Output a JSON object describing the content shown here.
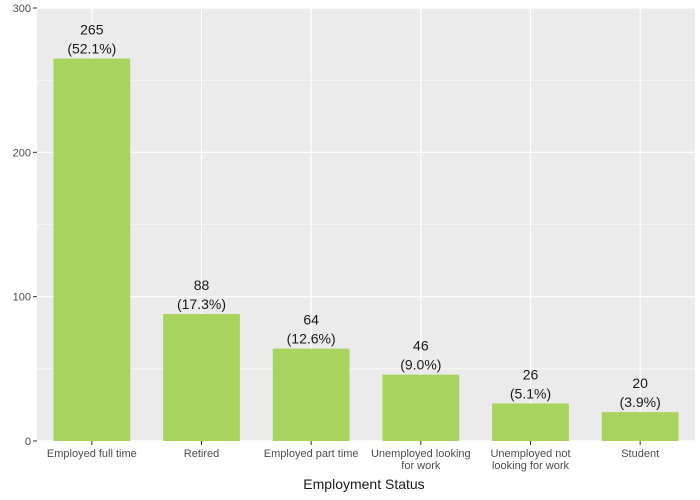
{
  "chart_data": {
    "type": "bar",
    "title": "",
    "xlabel": "Employment Status",
    "ylabel": "",
    "ylim": [
      0,
      300
    ],
    "yticks": [
      0,
      100,
      200,
      300
    ],
    "categories": [
      [
        "Employed full time"
      ],
      [
        "Retired"
      ],
      [
        "Employed part time"
      ],
      [
        "Unemployed looking",
        "for work"
      ],
      [
        "Unemployed not",
        "looking for work"
      ],
      [
        "Student"
      ]
    ],
    "values": [
      265,
      88,
      64,
      46,
      26,
      20
    ],
    "percent_labels": [
      "(52.1%)",
      "(17.3%)",
      "(12.6%)",
      "(9.0%)",
      "(5.1%)",
      "(3.9%)"
    ],
    "value_labels": [
      "265",
      "88",
      "64",
      "46",
      "26",
      "20"
    ],
    "grid": true,
    "colors": {
      "bar": "#a9d35f",
      "panel": "#ebebeb",
      "grid": "#ffffff",
      "tick": "#4d4d4d"
    }
  }
}
